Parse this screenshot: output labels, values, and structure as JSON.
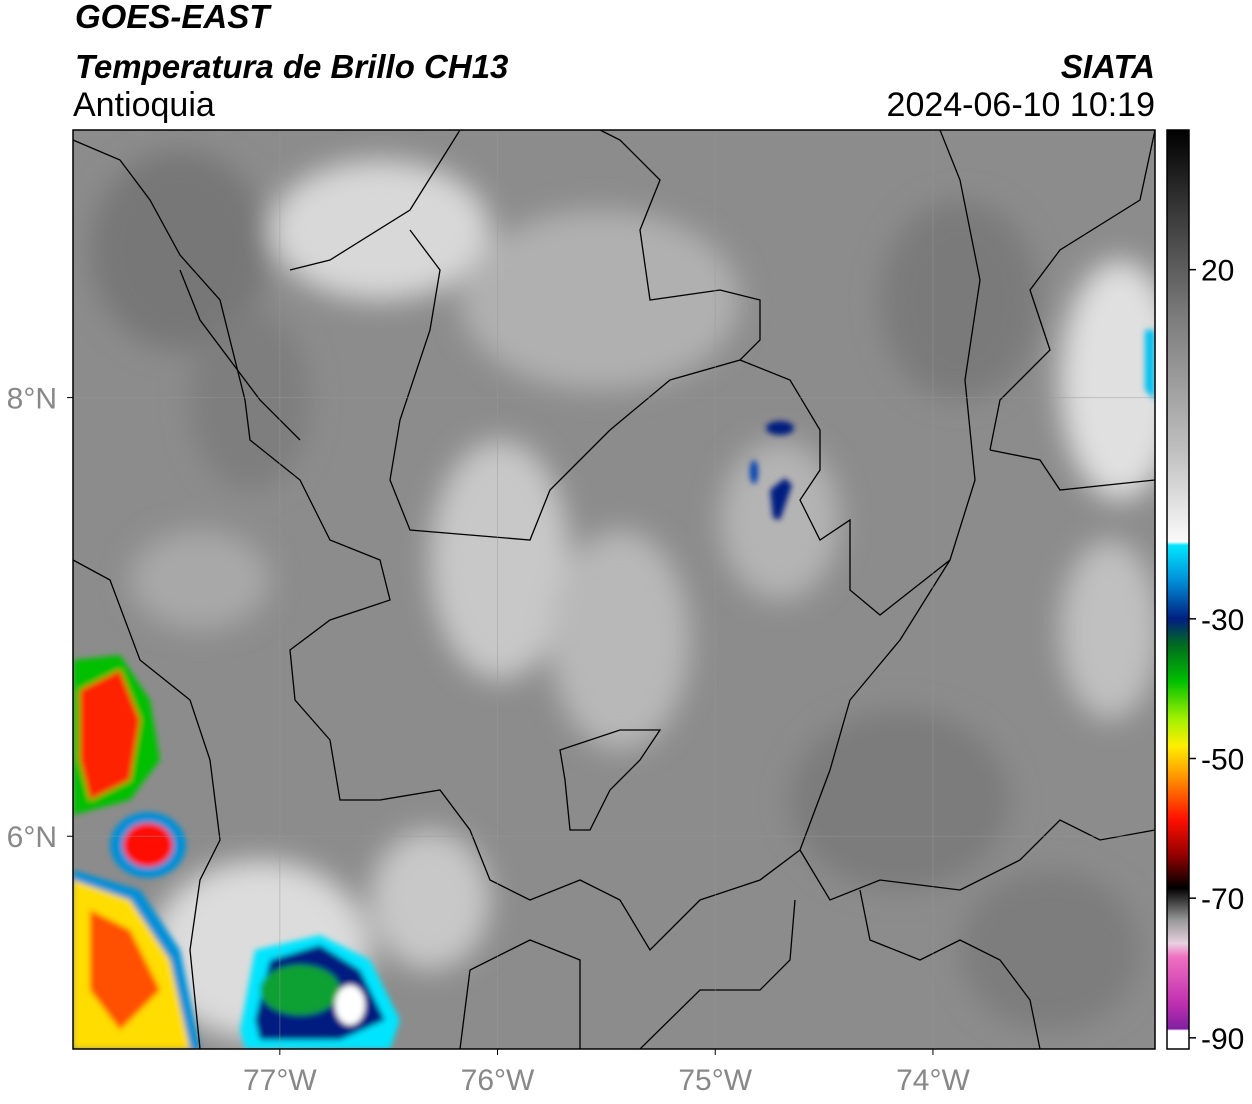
{
  "header": {
    "satellite": "GOES-EAST",
    "product": "Temperatura de Brillo CH13",
    "region": "Antioquia",
    "agency": "SIATA",
    "timestamp": "2024-06-10 10:19"
  },
  "map": {
    "xlim": [
      -77.95,
      -72.98
    ],
    "ylim": [
      5.03,
      9.22
    ],
    "xticks": [
      {
        "value": -77,
        "label": "77°W"
      },
      {
        "value": -76,
        "label": "76°W"
      },
      {
        "value": -75,
        "label": "75°W"
      },
      {
        "value": -74,
        "label": "74°W"
      }
    ],
    "yticks": [
      {
        "value": 8,
        "label": "8°N"
      },
      {
        "value": 6,
        "label": "6°N"
      }
    ]
  },
  "colorbar": {
    "lim": [
      -91.6,
      40
    ],
    "ticks": [
      20,
      -30,
      -50,
      -70,
      -90
    ]
  }
}
